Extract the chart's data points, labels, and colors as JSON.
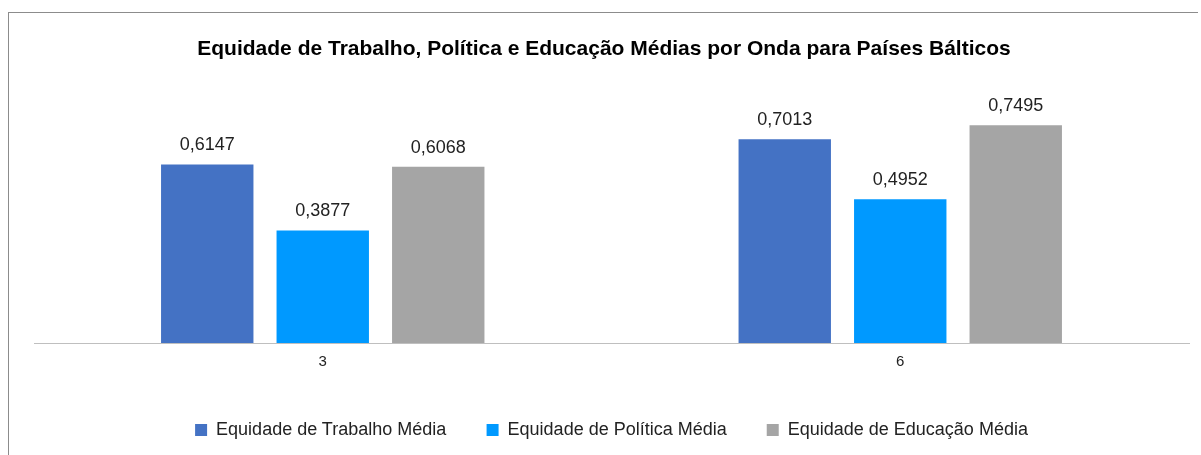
{
  "chart_data": {
    "type": "bar",
    "title": "Equidade de Trabalho, Política e Educação Médias por Onda para Países Bálticos",
    "categories": [
      "3",
      "6"
    ],
    "series": [
      {
        "name": "Equidade de Trabalho Média",
        "color": "#4472c4",
        "values": [
          0.6147,
          0.7013
        ],
        "value_labels": [
          "0,6147",
          "0,7013"
        ]
      },
      {
        "name": "Equidade de Política Média",
        "color": "#0099ff",
        "values": [
          0.3877,
          0.4952
        ],
        "value_labels": [
          "0,3877",
          "0,4952"
        ]
      },
      {
        "name": "Equidade de Educação Média",
        "color": "#a5a5a5",
        "values": [
          0.6068,
          0.7495
        ],
        "value_labels": [
          "0,6068",
          "0,7495"
        ]
      }
    ],
    "legend": "bottom",
    "grid": false
  }
}
